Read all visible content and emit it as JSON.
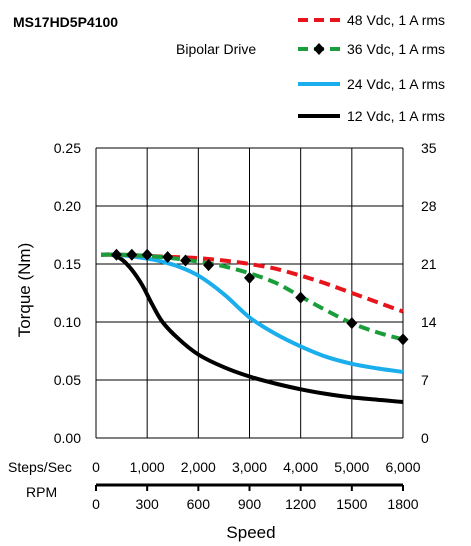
{
  "chart_data": {
    "type": "line",
    "title": "MS17HD5P4100",
    "subtitle": "Bipolar Drive",
    "xlabel": "Speed",
    "ylabel": "Torque (Nm)",
    "x_unit_label": "Steps/Sec",
    "x2_unit_label": "RPM",
    "xlim": [
      0,
      6000
    ],
    "ylim": [
      0,
      0.25
    ],
    "y2lim": [
      0,
      35
    ],
    "grid": true,
    "legend_position": "top-right",
    "x_ticks": [
      "0",
      "1,000",
      "2,000",
      "3,000",
      "4,000",
      "5,000",
      "6,000"
    ],
    "x2_ticks": [
      "0",
      "300",
      "600",
      "900",
      "1200",
      "1500",
      "1800"
    ],
    "y_ticks": [
      "0.00",
      "0.05",
      "0.10",
      "0.15",
      "0.20",
      "0.25"
    ],
    "y2_ticks": [
      "0",
      "7",
      "14",
      "21",
      "28",
      "35"
    ],
    "series": [
      {
        "name": "48 Vdc, 1 A rms",
        "color": "#e8141b",
        "style": "dashed",
        "x": [
          100,
          500,
          1000,
          1500,
          2000,
          2500,
          3000,
          3500,
          4000,
          4500,
          5000,
          5500,
          6000
        ],
        "y": [
          0.158,
          0.158,
          0.157,
          0.156,
          0.155,
          0.153,
          0.15,
          0.146,
          0.14,
          0.133,
          0.125,
          0.117,
          0.109
        ]
      },
      {
        "name": "36 Vdc, 1 A rms",
        "color": "#1a9e3a",
        "style": "dashed-diamond",
        "x": [
          100,
          500,
          1000,
          1500,
          2000,
          2500,
          3000,
          3500,
          4000,
          4500,
          5000,
          5500,
          6000
        ],
        "y": [
          0.158,
          0.158,
          0.157,
          0.155,
          0.152,
          0.148,
          0.142,
          0.134,
          0.122,
          0.11,
          0.099,
          0.091,
          0.085
        ],
        "markers": {
          "x": [
            400,
            700,
            1000,
            1400,
            1750,
            2200,
            3000,
            4000,
            5000,
            6000
          ],
          "y": [
            0.158,
            0.158,
            0.158,
            0.156,
            0.153,
            0.149,
            0.138,
            0.121,
            0.099,
            0.085
          ]
        }
      },
      {
        "name": "24 Vdc, 1 A rms",
        "color": "#1aaeec",
        "style": "solid",
        "x": [
          100,
          400,
          800,
          1200,
          1600,
          2000,
          2500,
          3000,
          3500,
          4000,
          4500,
          5000,
          5500,
          6000
        ],
        "y": [
          0.158,
          0.158,
          0.156,
          0.153,
          0.148,
          0.14,
          0.124,
          0.104,
          0.09,
          0.079,
          0.07,
          0.064,
          0.06,
          0.057
        ]
      },
      {
        "name": "12 Vdc, 1 A rms",
        "color": "#000000",
        "style": "solid",
        "x": [
          100,
          300,
          500,
          700,
          900,
          1100,
          1300,
          1600,
          2000,
          2500,
          3000,
          3500,
          4000,
          4500,
          5000,
          5500,
          6000
        ],
        "y": [
          0.158,
          0.158,
          0.154,
          0.145,
          0.132,
          0.115,
          0.1,
          0.086,
          0.072,
          0.061,
          0.053,
          0.047,
          0.042,
          0.038,
          0.035,
          0.033,
          0.031
        ]
      }
    ]
  }
}
